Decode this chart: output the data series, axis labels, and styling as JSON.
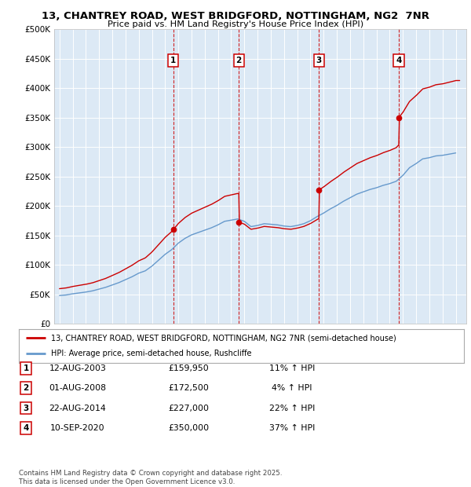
{
  "title1": "13, CHANTREY ROAD, WEST BRIDGFORD, NOTTINGHAM, NG2  7NR",
  "title2": "Price paid vs. HM Land Registry's House Price Index (HPI)",
  "plot_bg_color": "#dce9f5",
  "ylim": [
    0,
    500000
  ],
  "yticks": [
    0,
    50000,
    100000,
    150000,
    200000,
    250000,
    300000,
    350000,
    400000,
    450000,
    500000
  ],
  "ytick_labels": [
    "£0",
    "£50K",
    "£100K",
    "£150K",
    "£200K",
    "£250K",
    "£300K",
    "£350K",
    "£400K",
    "£450K",
    "£500K"
  ],
  "sales": [
    {
      "num": 1,
      "date": "12-AUG-2003",
      "year": 2003.62,
      "price": 159950,
      "hpi_pct": "11% ↑ HPI"
    },
    {
      "num": 2,
      "date": "01-AUG-2008",
      "year": 2008.58,
      "price": 172500,
      "hpi_pct": "4% ↑ HPI"
    },
    {
      "num": 3,
      "date": "22-AUG-2014",
      "year": 2014.64,
      "price": 227000,
      "hpi_pct": "22% ↑ HPI"
    },
    {
      "num": 4,
      "date": "10-SEP-2020",
      "year": 2020.69,
      "price": 350000,
      "hpi_pct": "37% ↑ HPI"
    }
  ],
  "legend_line1": "13, CHANTREY ROAD, WEST BRIDGFORD, NOTTINGHAM, NG2 7NR (semi-detached house)",
  "legend_line2": "HPI: Average price, semi-detached house, Rushcliffe",
  "footer1": "Contains HM Land Registry data © Crown copyright and database right 2025.",
  "footer2": "This data is licensed under the Open Government Licence v3.0.",
  "red_color": "#cc0000",
  "blue_color": "#6699cc",
  "years_hpi": [
    1995,
    1995.5,
    1996,
    1996.5,
    1997,
    1997.5,
    1998,
    1998.5,
    1999,
    1999.5,
    2000,
    2000.5,
    2001,
    2001.5,
    2002,
    2002.5,
    2003,
    2003.5,
    2004,
    2004.5,
    2005,
    2005.5,
    2006,
    2006.5,
    2007,
    2007.5,
    2008,
    2008.5,
    2009,
    2009.5,
    2010,
    2010.5,
    2011,
    2011.5,
    2012,
    2012.5,
    2013,
    2013.5,
    2014,
    2014.5,
    2015,
    2015.5,
    2016,
    2016.5,
    2017,
    2017.5,
    2018,
    2018.5,
    2019,
    2019.5,
    2020,
    2020.5,
    2021,
    2021.5,
    2022,
    2022.5,
    2023,
    2023.5,
    2024,
    2024.5,
    2025
  ],
  "hpi_values": [
    48000,
    49000,
    51000,
    52500,
    54000,
    56000,
    59000,
    62000,
    66000,
    70000,
    75000,
    80000,
    86000,
    90000,
    98000,
    108000,
    118000,
    126000,
    137000,
    145000,
    151000,
    155000,
    159000,
    163000,
    168000,
    174000,
    176000,
    178000,
    174000,
    165000,
    167000,
    170000,
    169000,
    168000,
    166000,
    165000,
    167000,
    170000,
    175000,
    182000,
    188000,
    195000,
    201000,
    208000,
    214000,
    220000,
    224000,
    228000,
    231000,
    235000,
    238000,
    242000,
    252000,
    265000,
    272000,
    280000,
    282000,
    285000,
    286000,
    288000,
    290000
  ]
}
